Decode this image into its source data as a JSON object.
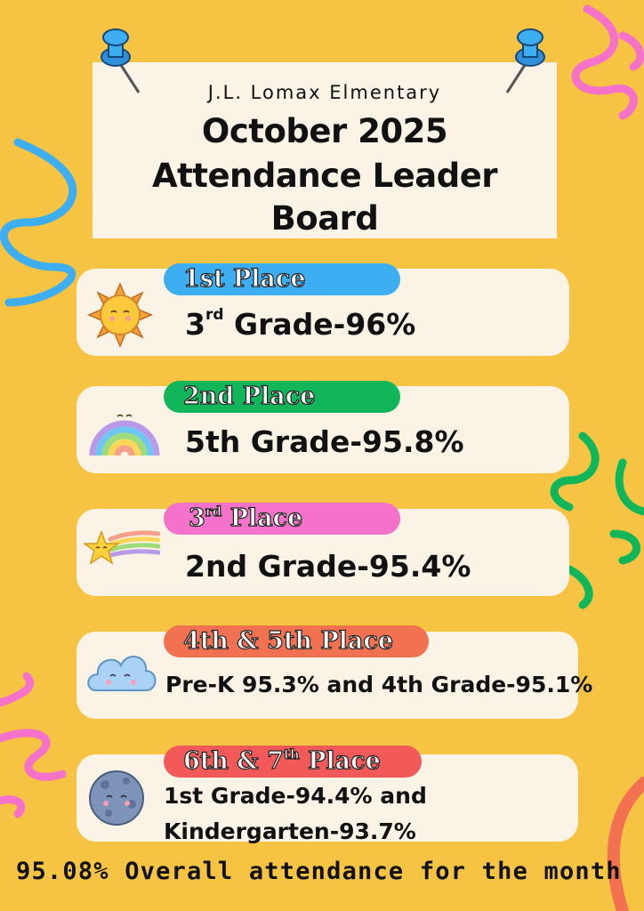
{
  "header": {
    "school": "J.L. Lomax Elmentary",
    "title_line1": "October 2025",
    "title_line2": "Attendance Leader",
    "title_line3": "Board"
  },
  "places": [
    {
      "badge_main": "1st Place",
      "badge_sup": "",
      "badge_after": "",
      "badge_color": "#3DAEF2",
      "grade_main": "3",
      "grade_sup": "rd",
      "grade_after": " Grade-96%",
      "icon": "sun-icon"
    },
    {
      "badge_main": "2nd Place",
      "badge_sup": "",
      "badge_after": "",
      "badge_color": "#12B65A",
      "grade_main": "5th Grade-95.8%",
      "grade_sup": "",
      "grade_after": "",
      "icon": "rainbow-icon"
    },
    {
      "badge_main": "3",
      "badge_sup": "rd",
      "badge_after": " Place",
      "badge_color": "#F472C9",
      "grade_main": "2nd Grade-95.4%",
      "grade_sup": "",
      "grade_after": "",
      "icon": "shooting-star-icon"
    },
    {
      "badge_main": "4th & 5th Place",
      "badge_sup": "",
      "badge_after": "",
      "badge_color": "#F27150",
      "grade_main": "Pre-K 95.3% and 4th Grade-95.1%",
      "grade_sup": "",
      "grade_after": "",
      "icon": "cloud-icon"
    },
    {
      "badge_main": "6th & 7",
      "badge_sup": "th",
      "badge_after": " Place",
      "badge_color": "#F25A5A",
      "grade_line1": "1st Grade-94.4% and",
      "grade_line2": "Kindergarten-93.7%",
      "icon": "moon-icon"
    }
  ],
  "footer": {
    "overall": "95.08% Overall attendance for the month"
  },
  "colors": {
    "background": "#F6C343",
    "card": "#FBF3E6",
    "squiggle_blue": "#3DAEF2",
    "squiggle_pink": "#F472C9",
    "squiggle_green": "#12B65A",
    "squiggle_coral": "#F27150"
  }
}
